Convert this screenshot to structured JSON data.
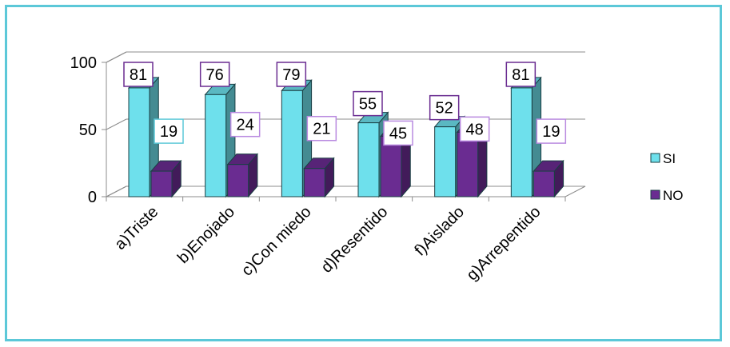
{
  "chart_data": {
    "type": "bar",
    "title": "",
    "xlabel": "",
    "ylabel": "",
    "ylim": [
      0,
      100
    ],
    "yticks": [
      0,
      50,
      100
    ],
    "grid": true,
    "legend_position": "right",
    "categories": [
      "a)Triste",
      "b)Enojado",
      "c)Con miedo",
      "d)Resentido",
      "f)Aislado",
      "g)Arrepentido"
    ],
    "series": [
      {
        "name": "SI",
        "values": [
          81,
          76,
          79,
          55,
          52,
          81
        ],
        "color": "#6ee0ec"
      },
      {
        "name": "NO",
        "values": [
          19,
          24,
          21,
          45,
          48,
          19
        ],
        "color": "#6a2c91"
      }
    ]
  }
}
